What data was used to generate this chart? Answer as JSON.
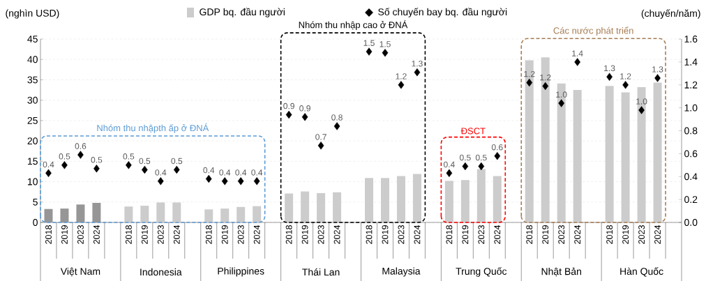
{
  "chart_data": {
    "type": "bar",
    "categories": [
      "2018",
      "2019",
      "2023",
      "2024",
      null,
      "2018",
      "2019",
      "2023",
      "2024",
      null,
      "2018",
      "2019",
      "2023",
      "2024",
      null,
      "2018",
      "2019",
      "2023",
      "2024",
      null,
      "2018",
      "2019",
      "2023",
      "2024",
      null,
      "2018",
      "2019",
      "2023",
      "2024",
      null,
      "2018",
      "2019",
      "2023",
      "2024",
      null,
      "2018",
      "2019",
      "2023",
      "2024",
      null
    ],
    "series": [
      {
        "name": "GDP bq. đầu người",
        "color": "#cccccc",
        "values": [
          3.3,
          3.4,
          4.4,
          4.8,
          null,
          3.9,
          4.1,
          4.9,
          4.9,
          null,
          3.2,
          3.4,
          3.8,
          4.0,
          null,
          7.1,
          7.6,
          7.2,
          7.4,
          null,
          10.9,
          10.9,
          11.4,
          11.9,
          null,
          10.2,
          10.4,
          13.1,
          11.4,
          null,
          39.8,
          40.5,
          34.1,
          32.5,
          null,
          33.5,
          31.9,
          33.2,
          34.3,
          null
        ],
        "colors": [
          "#969696",
          "#969696",
          "#969696",
          "#969696",
          null,
          "#cccccc",
          "#cccccc",
          "#cccccc",
          "#cccccc",
          null,
          "#cccccc",
          "#cccccc",
          "#cccccc",
          "#cccccc",
          null,
          "#cccccc",
          "#cccccc",
          "#cccccc",
          "#cccccc",
          null,
          "#cccccc",
          "#cccccc",
          "#cccccc",
          "#cccccc",
          null,
          "#cccccc",
          "#cccccc",
          "#cccccc",
          "#cccccc",
          null,
          "#cccccc",
          "#cccccc",
          "#cccccc",
          "#cccccc",
          null,
          "#cccccc",
          "#cccccc",
          "#cccccc",
          "#cccccc",
          null
        ]
      },
      {
        "name": "Số chuyến bay bq. đầu người",
        "type": "scatter",
        "axis": "y2",
        "color": "#000000",
        "marker": "diamond",
        "values": [
          0.43,
          0.5,
          0.59,
          0.47,
          null,
          0.5,
          0.46,
          0.36,
          0.46,
          null,
          0.38,
          0.36,
          0.36,
          0.36,
          null,
          0.94,
          0.92,
          0.67,
          0.84,
          null,
          1.49,
          1.48,
          1.2,
          1.31,
          null,
          0.43,
          0.49,
          0.49,
          0.58,
          null,
          1.22,
          1.19,
          1.04,
          1.4,
          null,
          1.27,
          1.2,
          0.98,
          1.26,
          null
        ],
        "value_labels": [
          "0.4",
          "0.5",
          "0.6",
          "0.5",
          null,
          "0.5",
          "0.5",
          "0.4",
          "0.5",
          null,
          "0.4",
          "0.4",
          "0.4",
          "0.4",
          null,
          "0.9",
          "0.9",
          "0.7",
          "0.8",
          null,
          "1.5",
          "1.5",
          "1.2",
          "1.3",
          null,
          "0.4",
          "0.5",
          "0.5",
          "0.6",
          null,
          "1.2",
          "1.2",
          "1.0",
          "1.4",
          null,
          "1.3",
          "1.2",
          "1.0",
          "1.3",
          null
        ]
      }
    ],
    "ylabel": "(nghìn USD)",
    "y2label": "(chuyến/năm)",
    "ylim": [
      0,
      45
    ],
    "yticks": [
      0,
      5,
      10,
      15,
      20,
      25,
      30,
      35,
      40,
      45
    ],
    "y2lim": [
      0,
      1.6
    ],
    "y2ticks": [
      {
        "value": 0,
        "label": "0.0"
      },
      {
        "value": 0.2,
        "label": "0.2"
      },
      {
        "value": 0.4,
        "label": "0.4"
      },
      {
        "value": 0.6,
        "label": "0.6"
      },
      {
        "value": 0.8,
        "label": "0.8"
      },
      {
        "value": 1,
        "label": "1.0"
      },
      {
        "value": 1.2,
        "label": "1.2"
      },
      {
        "value": 1.4,
        "label": "1.4"
      },
      {
        "value": 1.6,
        "label": "1.6"
      }
    ],
    "grid": "y",
    "legend": "top",
    "annotations": [
      "Việt Nam",
      "Indonesia",
      "Philippines",
      "Thái Lan",
      "Malaysia",
      "Trung Quốc",
      "Nhật Bản",
      "Hàn Quốc",
      "Nhóm thu nhậpth ấp ở ĐNÁ",
      "Nhóm thu nhập cao ở ĐNÁ",
      "ĐSCT",
      "Các nước phát triển"
    ]
  }
}
